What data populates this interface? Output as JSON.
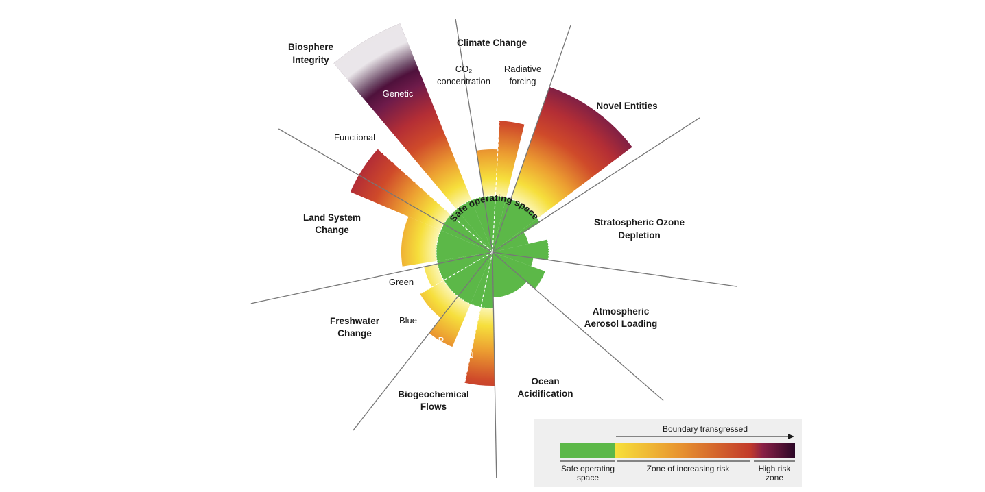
{
  "boundaries": {
    "climate_change": {
      "title": "Climate Change",
      "co2": "CO₂",
      "co2_2": "concentration",
      "rf": "Radiative",
      "rf_2": "forcing"
    },
    "novel_entities": {
      "title": "Novel Entities"
    },
    "ozone": {
      "title_1": "Stratospheric Ozone",
      "title_2": "Depletion"
    },
    "aerosol": {
      "title_1": "Atmospheric",
      "title_2": "Aerosol Loading"
    },
    "ocean": {
      "title_1": "Ocean",
      "title_2": "Acidification"
    },
    "biogeochemical": {
      "title_1": "Biogeochemical",
      "title_2": "Flows",
      "p": "P",
      "n": "N"
    },
    "freshwater": {
      "title_1": "Freshwater",
      "title_2": "Change",
      "green": "Green",
      "blue": "Blue"
    },
    "land_system": {
      "title_1": "Land System",
      "title_2": "Change"
    },
    "biosphere": {
      "title_1": "Biosphere",
      "title_2": "Integrity",
      "genetic": "Genetic",
      "functional": "Functional"
    }
  },
  "center_label": "Safe operating space",
  "legend": {
    "arrow_label": "Boundary transgressed",
    "safe_1": "Safe operating",
    "safe_2": "space",
    "zone": "Zone of increasing risk",
    "high_1": "High risk",
    "high_2": "zone"
  },
  "colors": {
    "safe": "#5cb848",
    "yellow": "#f7e03a",
    "orange": "#e8952f",
    "red": "#c23a2a",
    "dark": "#3d0a33"
  }
}
